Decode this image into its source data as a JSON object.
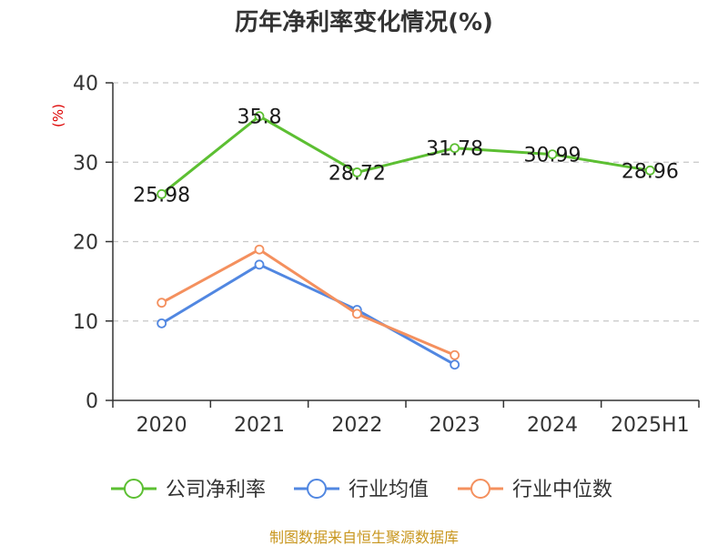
{
  "title": "历年净利率变化情况(%)",
  "unit_label": "(%)",
  "source": "制图数据来自恒生聚源数据库",
  "chart_data": {
    "type": "line",
    "categories": [
      "2020",
      "2021",
      "2022",
      "2023",
      "2024",
      "2025H1"
    ],
    "ylim": [
      0,
      40
    ],
    "yticks": [
      0,
      10,
      20,
      30,
      40
    ],
    "grid": true,
    "legend_position": "bottom",
    "series": [
      {
        "name": "公司净利率",
        "color": "#5cbf32",
        "values": [
          25.98,
          35.8,
          28.72,
          31.78,
          30.99,
          28.96
        ],
        "labels": [
          "25.98",
          "35.8",
          "28.72",
          "31.78",
          "30.99",
          "28.96"
        ]
      },
      {
        "name": "行业均值",
        "color": "#5187e1",
        "values": [
          9.7,
          17.1,
          11.4,
          4.5,
          null,
          null
        ]
      },
      {
        "name": "行业中位数",
        "color": "#f4905e",
        "values": [
          12.3,
          19.0,
          10.9,
          5.7,
          null,
          null
        ]
      }
    ]
  }
}
